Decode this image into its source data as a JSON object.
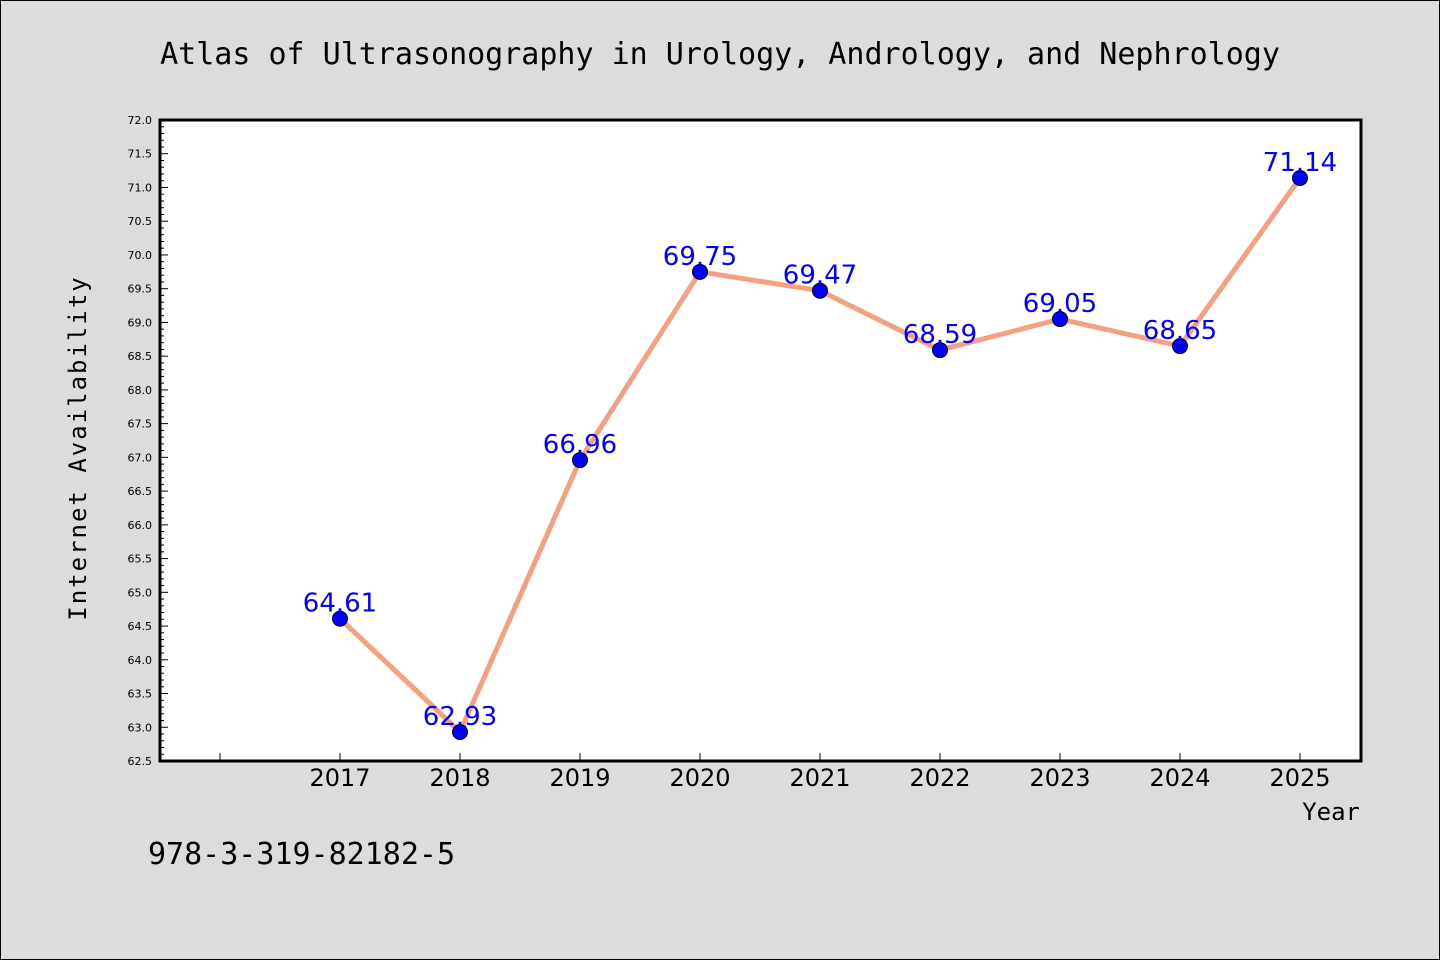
{
  "chart_data": {
    "type": "line",
    "title": "Atlas of Ultrasonography in Urology, Andrology, and Nephrology",
    "xlabel": "Year",
    "ylabel": "Internet Availability",
    "categories": [
      "2017",
      "2018",
      "2019",
      "2020",
      "2021",
      "2022",
      "2023",
      "2024",
      "2025"
    ],
    "series": [
      {
        "values": [
          64.61,
          62.93,
          66.96,
          69.75,
          69.47,
          68.59,
          69.05,
          68.65,
          71.14
        ],
        "labels": [
          "64.61",
          "62.93",
          "66.96",
          "69.75",
          "69.47",
          "68.59",
          "69.05",
          "68.65",
          "71.14"
        ],
        "line_color": "#f4a081",
        "marker_color": "#0000ff"
      }
    ],
    "ylim": [
      62.5,
      72.0
    ],
    "yticks": [
      "62.5",
      "63.0",
      "63.5",
      "64.0",
      "64.5",
      "65.0",
      "65.5",
      "66.0",
      "66.5",
      "67.0",
      "67.5",
      "68.0",
      "68.5",
      "69.0",
      "69.5",
      "70.0",
      "70.5",
      "71.0",
      "71.5",
      "72.0"
    ],
    "grid": false,
    "legend": "none"
  },
  "footer": {
    "isbn": "978-3-319-82182-5"
  },
  "colors": {
    "background": "#dcdcdc",
    "plot_background": "#ffffff",
    "data_label": "#0000ff"
  }
}
